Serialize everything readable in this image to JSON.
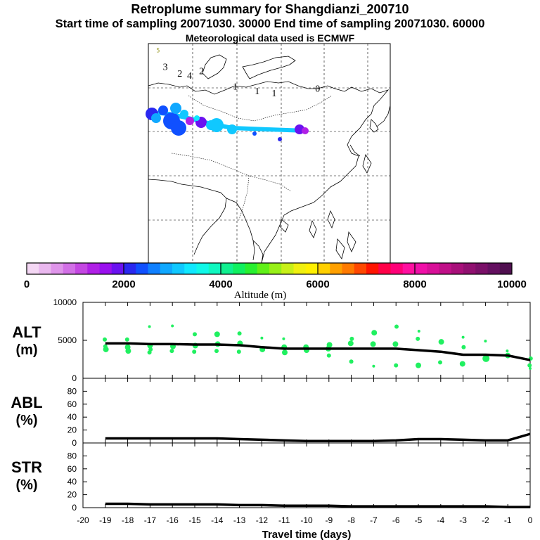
{
  "titles": {
    "line1": "Retroplume summary for Shangdianzi_200710",
    "line2": "Start time of sampling 20071030. 30000     End time of sampling 20071030. 60000",
    "line3": "Meteorological data used is ECMWF"
  },
  "map": {
    "labels": [
      {
        "text": "0",
        "lon": 0.7,
        "lat": 0.78
      },
      {
        "text": "1",
        "lon": 0.36,
        "lat": 0.79
      },
      {
        "text": "1",
        "lon": 0.45,
        "lat": 0.77
      },
      {
        "text": "1",
        "lon": 0.52,
        "lat": 0.76
      },
      {
        "text": "2",
        "lon": 0.13,
        "lat": 0.85
      },
      {
        "text": "2",
        "lon": 0.22,
        "lat": 0.86
      },
      {
        "text": "3",
        "lon": 0.07,
        "lat": 0.88
      },
      {
        "text": "4",
        "lon": 0.17,
        "lat": 0.84
      },
      {
        "text": "5",
        "lon": 0.04,
        "lat": 0.96
      }
    ]
  },
  "colorbar": {
    "title": "Altitude (m)",
    "tick_labels": [
      "0",
      "2000",
      "4000",
      "6000",
      "8000",
      "10000"
    ],
    "range": [
      0,
      10000
    ],
    "colors": [
      "#f4d7f4",
      "#eab8ef",
      "#df95ea",
      "#d270e6",
      "#c447e2",
      "#b020e6",
      "#9a10ee",
      "#6a12f0",
      "#2a28f0",
      "#1050ff",
      "#1080ff",
      "#10a8ff",
      "#10c8ff",
      "#10e8ff",
      "#10f8e8",
      "#10f8c0",
      "#10f090",
      "#10f060",
      "#28f030",
      "#60f018",
      "#98f018",
      "#c8f018",
      "#f0f010",
      "#fff000",
      "#ffd000",
      "#ffa000",
      "#ff7a00",
      "#ff4800",
      "#ff1400",
      "#ff0048",
      "#ff0078",
      "#ff10a0",
      "#f010a8",
      "#d81098",
      "#c01088",
      "#a8107a",
      "#901070",
      "#7a1068",
      "#641060",
      "#501050"
    ]
  },
  "colors": {
    "trajectory": "#10c8ff",
    "alt_dots": "#20f060",
    "line": "#000000"
  },
  "chart_data": [
    {
      "type": "line",
      "panel": "ALT",
      "ylabel": "ALT",
      "yunit": "(m)",
      "xlabel": "Travel time (days)",
      "xlim": [
        -20,
        0
      ],
      "ylim": [
        0,
        10000
      ],
      "yticks": [
        "0",
        "5000",
        "10000"
      ],
      "xticks": [
        "-20",
        "-19",
        "-18",
        "-17",
        "-16",
        "-15",
        "-14",
        "-13",
        "-12",
        "-11",
        "-10",
        "-9",
        "-8",
        "-7",
        "-6",
        "-5",
        "-4",
        "-3",
        "-2",
        "-1",
        "0"
      ],
      "x": [
        -19,
        -18,
        -17,
        -16,
        -15,
        -14,
        -13,
        -12,
        -11,
        -10,
        -9,
        -8,
        -7,
        -6,
        -5,
        -4,
        -3,
        -2,
        -1,
        0
      ],
      "values": [
        4600,
        4600,
        4500,
        4500,
        4450,
        4450,
        4350,
        4100,
        3900,
        3900,
        3900,
        3900,
        3900,
        3900,
        3700,
        3500,
        3100,
        3100,
        3000,
        2400
      ],
      "scatter": {
        "x": [
          -19,
          -19,
          -19,
          -18,
          -18,
          -18,
          -17,
          -17,
          -17,
          -17,
          -16,
          -16,
          -16,
          -15,
          -15,
          -15,
          -14,
          -14,
          -14,
          -13,
          -13,
          -13,
          -12,
          -12,
          -11,
          -11,
          -11,
          -10,
          -10,
          -9,
          -9,
          -9,
          -8,
          -8,
          -8,
          -7,
          -7,
          -7,
          -6,
          -6,
          -6,
          -5,
          -5,
          -5,
          -4,
          -4,
          -3,
          -3,
          -3,
          -2,
          -2,
          -1,
          -1,
          0,
          0,
          0
        ],
        "y": [
          5100,
          4200,
          3800,
          5100,
          4100,
          3600,
          6800,
          4300,
          3800,
          3400,
          6900,
          4200,
          3600,
          5800,
          4300,
          3500,
          5800,
          4500,
          3600,
          5900,
          4600,
          3500,
          5300,
          3800,
          5200,
          4100,
          3400,
          4100,
          3700,
          4400,
          3900,
          3000,
          5200,
          4600,
          2200,
          6000,
          4500,
          1600,
          6800,
          4500,
          1700,
          6200,
          5200,
          1700,
          4800,
          2100,
          5400,
          4100,
          1900,
          4900,
          2600,
          3600,
          3000,
          2600,
          1700,
          1300
        ],
        "size": [
          3,
          3,
          4,
          3,
          4,
          4,
          2,
          4,
          3,
          3,
          2,
          4,
          3,
          3,
          4,
          3,
          4,
          4,
          3,
          3,
          4,
          3,
          2,
          4,
          2,
          4,
          4,
          4,
          4,
          4,
          4,
          3,
          3,
          4,
          3,
          4,
          4,
          2,
          3,
          4,
          3,
          2,
          3,
          4,
          4,
          3,
          2,
          3,
          4,
          2,
          5,
          2,
          4,
          3,
          3,
          2
        ]
      }
    },
    {
      "type": "line",
      "panel": "ABL",
      "ylabel": "ABL",
      "yunit": "(%)",
      "xlim": [
        -20,
        0
      ],
      "ylim": [
        0,
        100
      ],
      "yticks": [
        "0",
        "20",
        "40",
        "60",
        "80"
      ],
      "x": [
        -19,
        -18,
        -17,
        -16,
        -15,
        -14,
        -13,
        -12,
        -11,
        -10,
        -9,
        -8,
        -7,
        -6,
        -5,
        -4,
        -3,
        -2,
        -1,
        0
      ],
      "values": [
        7,
        7,
        7,
        7,
        7,
        7,
        6,
        5,
        4,
        3,
        3,
        3,
        3,
        4,
        6,
        6,
        5,
        4,
        4,
        14
      ]
    },
    {
      "type": "line",
      "panel": "STR",
      "ylabel": "STR",
      "yunit": "(%)",
      "xlim": [
        -20,
        0
      ],
      "ylim": [
        0,
        100
      ],
      "yticks": [
        "0",
        "20",
        "40",
        "60",
        "80"
      ],
      "x": [
        -19,
        -18,
        -17,
        -16,
        -15,
        -14,
        -13,
        -12,
        -11,
        -10,
        -9,
        -8,
        -7,
        -6,
        -5,
        -4,
        -3,
        -2,
        -1,
        0
      ],
      "values": [
        6,
        6,
        5,
        5,
        5,
        5,
        4,
        4,
        3,
        3,
        3,
        2,
        2,
        2,
        2,
        2,
        2,
        2,
        1,
        1
      ]
    }
  ],
  "xaxis": {
    "label": "Travel time (days)"
  }
}
